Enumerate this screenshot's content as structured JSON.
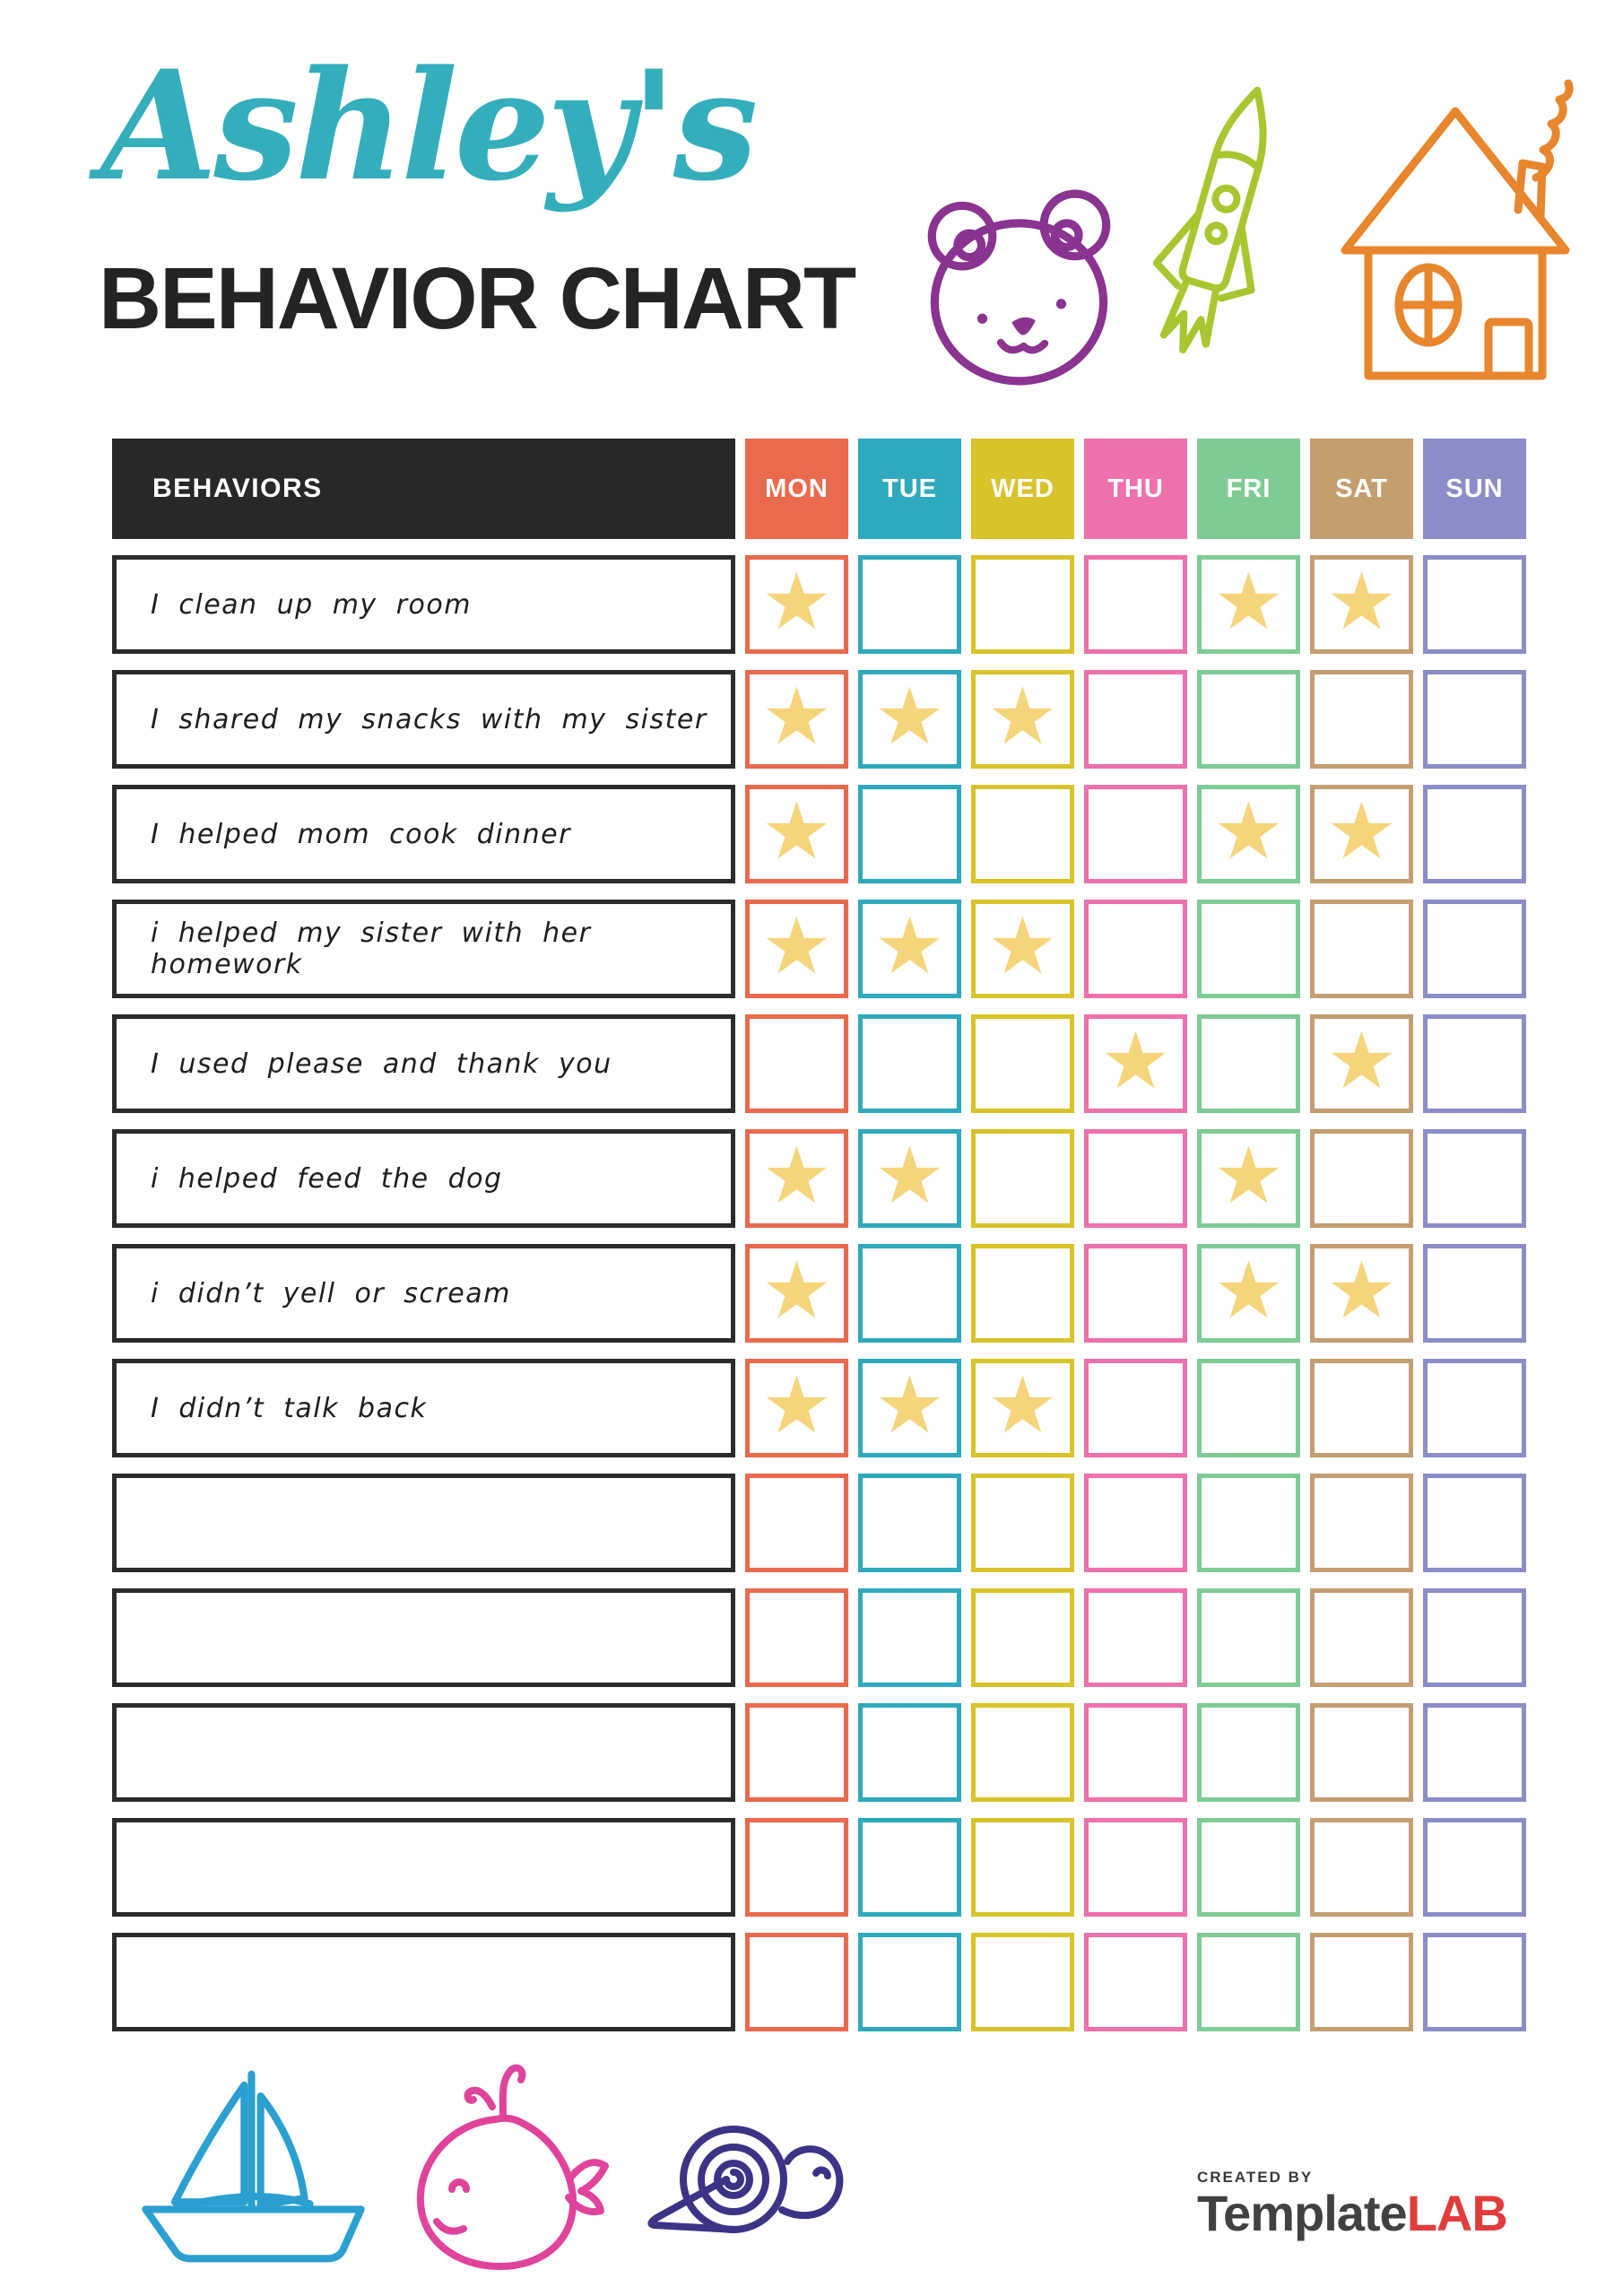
{
  "page": {
    "title_script": "Ashley's",
    "title_main": "BEHAVIOR CHART"
  },
  "chart": {
    "behaviors_header": "BEHAVIORS",
    "header_bg": "#282828",
    "days": [
      "MON",
      "TUE",
      "WED",
      "THU",
      "FRI",
      "SAT",
      "SUN"
    ],
    "day_colors": [
      "#E96A4C",
      "#2FA9BE",
      "#D9C32B",
      "#EE71AC",
      "#7FCB96",
      "#C49E71",
      "#8A8DC8"
    ],
    "star_icon": "★",
    "star_color": "#F6D47B",
    "rows": [
      {
        "label": "I clean up my room",
        "stars": [
          "MON",
          "FRI",
          "SAT"
        ]
      },
      {
        "label": "I shared my snacks with my sister",
        "stars": [
          "MON",
          "TUE",
          "WED"
        ]
      },
      {
        "label": "I helped mom cook dinner",
        "stars": [
          "MON",
          "FRI",
          "SAT"
        ]
      },
      {
        "label": "i helped my sister with her homework",
        "stars": [
          "MON",
          "TUE",
          "WED"
        ]
      },
      {
        "label": "I used please and thank you",
        "stars": [
          "THU",
          "SAT"
        ]
      },
      {
        "label": "i helped feed the dog",
        "stars": [
          "MON",
          "TUE",
          "FRI"
        ]
      },
      {
        "label": "i didn’t yell or scream",
        "stars": [
          "MON",
          "FRI",
          "SAT"
        ]
      },
      {
        "label": "I didn’t talk back",
        "stars": [
          "MON",
          "TUE",
          "WED"
        ]
      },
      {
        "label": "",
        "stars": []
      },
      {
        "label": "",
        "stars": []
      },
      {
        "label": "",
        "stars": []
      },
      {
        "label": "",
        "stars": []
      },
      {
        "label": "",
        "stars": []
      }
    ]
  },
  "decorations": {
    "top_doodles": [
      "bear-doodle",
      "rocket-doodle",
      "house-doodle"
    ],
    "bottom_doodles": [
      "sailboat-doodle",
      "whale-doodle",
      "snail-doodle"
    ],
    "colors": {
      "bear": "#8A3390",
      "rocket": "#A8C62F",
      "house": "#E8862E",
      "sailboat": "#2B9FD0",
      "whale": "#E0439B",
      "snail": "#3B3486"
    }
  },
  "footer": {
    "created_by": "CREATED BY",
    "brand_first": "Template",
    "brand_second": "LAB"
  }
}
